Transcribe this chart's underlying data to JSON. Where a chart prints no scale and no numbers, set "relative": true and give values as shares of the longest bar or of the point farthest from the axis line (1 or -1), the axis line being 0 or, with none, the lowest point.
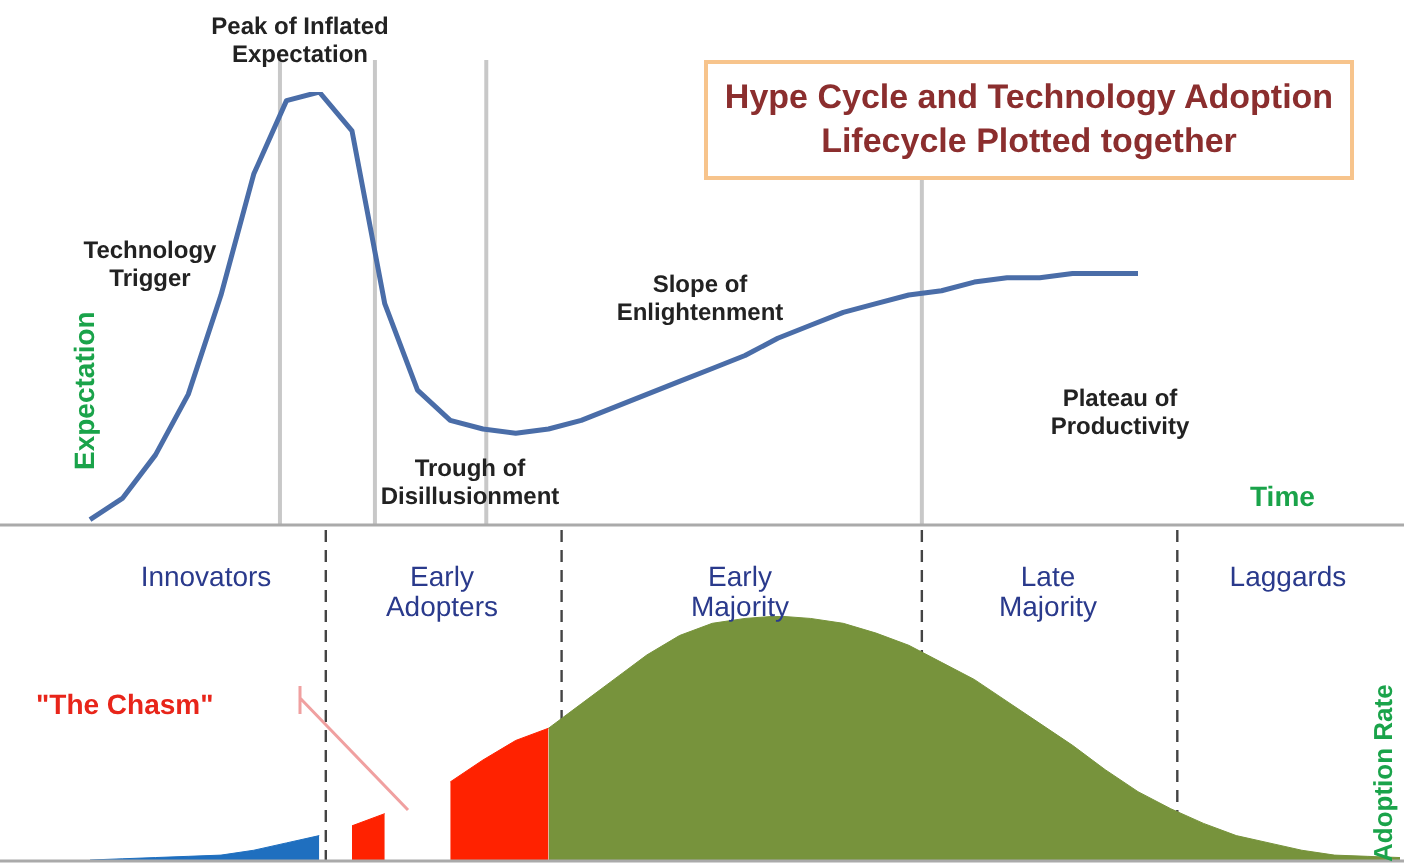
{
  "chart_data": [
    {
      "type": "line",
      "title": "Hype Cycle and Technology Adoption Lifecycle Plotted together",
      "xlabel": "Time",
      "ylabel": "Expectation",
      "relative": true,
      "tick_labels": false,
      "marker": "none",
      "categories": [
        null,
        null,
        null,
        null,
        null,
        null,
        null,
        null,
        null,
        null,
        null,
        null,
        null,
        null,
        null,
        null,
        null,
        null,
        null,
        null,
        null,
        null,
        null,
        null,
        null,
        null,
        null,
        null,
        null,
        null,
        null,
        null,
        null,
        null,
        null,
        null,
        null,
        null,
        null,
        null,
        null
      ],
      "annotations": [
        "Technology Trigger",
        "Peak of Inflated Expectation",
        "Trough of Disillusionment",
        "Slope of Enlightenment",
        "Plateau of Productivity"
      ],
      "series": [
        {
          "color": "#4a6da8",
          "values": [
            0.01,
            0.06,
            0.16,
            0.3,
            0.53,
            0.81,
            0.98,
            1.0,
            0.91,
            0.51,
            0.31,
            0.24,
            0.22,
            0.21,
            0.22,
            0.24,
            0.27,
            0.3,
            0.33,
            0.36,
            0.39,
            0.43,
            0.46,
            0.49,
            0.51,
            0.53,
            0.54,
            0.56,
            0.57,
            0.57,
            0.58,
            0.58,
            0.58,
            null,
            null,
            null,
            null,
            null,
            null,
            null,
            null
          ]
        }
      ]
    },
    {
      "type": "area",
      "ylabel": "Adoption Rate",
      "relative": true,
      "tick_labels": false,
      "marker": "none",
      "categories": [
        null,
        null,
        null,
        null,
        null,
        null,
        null,
        null,
        null,
        null,
        null,
        null,
        null,
        null,
        null,
        null,
        null,
        null,
        null,
        null,
        null,
        null,
        null,
        null,
        null,
        null,
        null,
        null,
        null,
        null,
        null,
        null,
        null,
        null,
        null,
        null,
        null,
        null,
        null,
        null,
        null
      ],
      "annotations": [
        "Innovators",
        "Early Adopters",
        "Early Majority",
        "Late Majority",
        "Laggards",
        "\"The Chasm\""
      ],
      "series": [
        {
          "color": "#1f6fbf",
          "values": [
            0,
            0.005,
            0.01,
            0.015,
            0.02,
            0.04,
            0.07,
            0.1,
            null,
            null,
            null,
            null,
            null,
            null,
            null,
            null,
            null,
            null,
            null,
            null,
            null,
            null,
            null,
            null,
            null,
            null,
            null,
            null,
            null,
            null,
            null,
            null,
            null,
            null,
            null,
            null,
            null,
            null,
            null,
            null,
            null
          ]
        },
        {
          "color": "#ff2200",
          "values": [
            null,
            null,
            null,
            null,
            null,
            null,
            null,
            null,
            0.14,
            0.19,
            null,
            null,
            null,
            null,
            null,
            null,
            null,
            null,
            null,
            null,
            null,
            null,
            null,
            null,
            null,
            null,
            null,
            null,
            null,
            null,
            null,
            null,
            null,
            null,
            null,
            null,
            null,
            null,
            null,
            null,
            null
          ]
        },
        {
          "color": "#ff2200",
          "values": [
            null,
            null,
            null,
            null,
            null,
            null,
            null,
            null,
            null,
            null,
            null,
            0.32,
            0.41,
            0.49,
            0.54,
            null,
            null,
            null,
            null,
            null,
            null,
            null,
            null,
            null,
            null,
            null,
            null,
            null,
            null,
            null,
            null,
            null,
            null,
            null,
            null,
            null,
            null,
            null,
            null,
            null,
            null
          ]
        },
        {
          "color": "#77933c",
          "values": [
            null,
            null,
            null,
            null,
            null,
            null,
            null,
            null,
            null,
            null,
            null,
            null,
            null,
            null,
            0.54,
            0.64,
            0.74,
            0.84,
            0.92,
            0.97,
            0.99,
            1.0,
            0.99,
            0.97,
            0.93,
            0.88,
            0.81,
            0.74,
            0.65,
            0.56,
            0.47,
            0.37,
            0.28,
            0.21,
            0.15,
            0.1,
            0.07,
            0.04,
            0.02,
            0.015,
            0.01
          ]
        }
      ]
    }
  ]
}
